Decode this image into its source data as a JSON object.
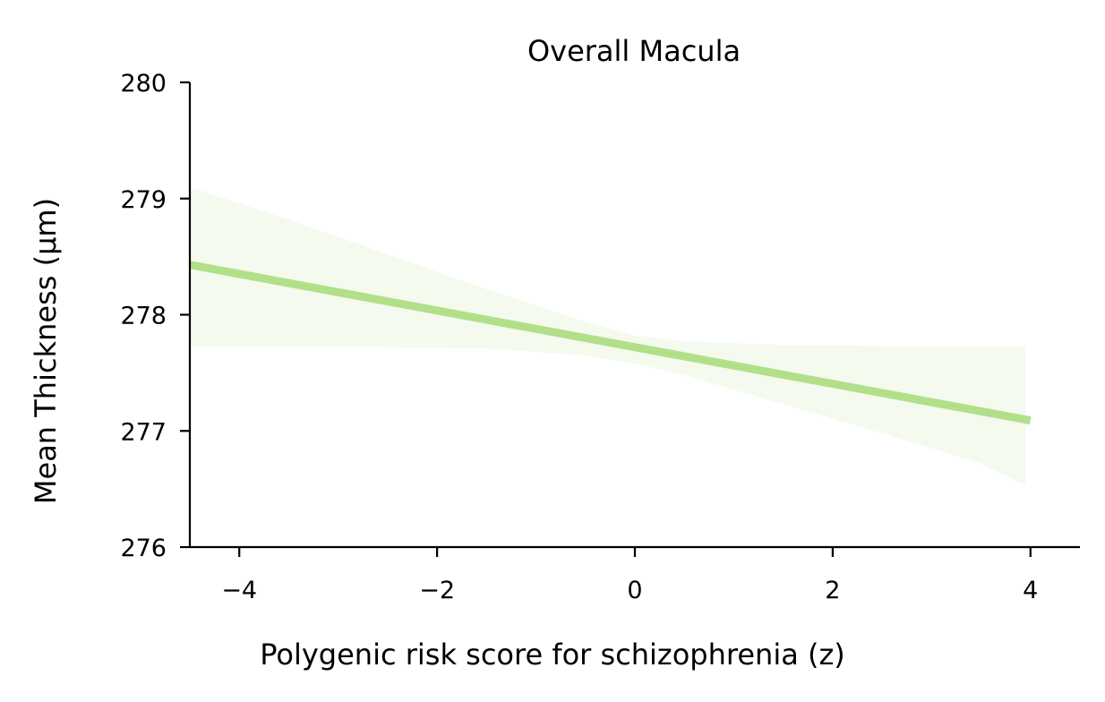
{
  "chart_data": {
    "type": "line",
    "title": "Overall Macula",
    "xlabel": "Polygenic risk score for schizophrenia (z)",
    "ylabel": "Mean Thickness (µm)",
    "xlim": [
      -4.5,
      4.5
    ],
    "ylim": [
      276,
      280
    ],
    "xticks": [
      -4,
      -2,
      0,
      2,
      4
    ],
    "xtick_labels": [
      "−4",
      "−2",
      "0",
      "2",
      "4"
    ],
    "yticks": [
      276,
      277,
      278,
      279,
      280
    ],
    "ytick_labels": [
      "276",
      "277",
      "278",
      "279",
      "280"
    ],
    "grid": false,
    "colors": {
      "line": "#b2df8a",
      "band": "#b2df8a",
      "axis": "#000000"
    },
    "series": [
      {
        "x": [
          -4.5,
          4.0
        ],
        "y": [
          278.43,
          277.09
        ]
      }
    ],
    "confidence_band": {
      "x": [
        -4.5,
        -3.5,
        -2.5,
        -1.5,
        -0.5,
        0.0,
        0.5,
        1.5,
        2.5,
        3.5,
        3.95
      ],
      "upper": [
        279.1,
        278.82,
        278.52,
        278.22,
        277.94,
        277.82,
        277.77,
        277.74,
        277.73,
        277.73,
        277.73
      ],
      "lower": [
        277.73,
        277.73,
        277.72,
        277.71,
        277.65,
        277.58,
        277.48,
        277.23,
        276.98,
        276.72,
        276.53
      ]
    }
  }
}
